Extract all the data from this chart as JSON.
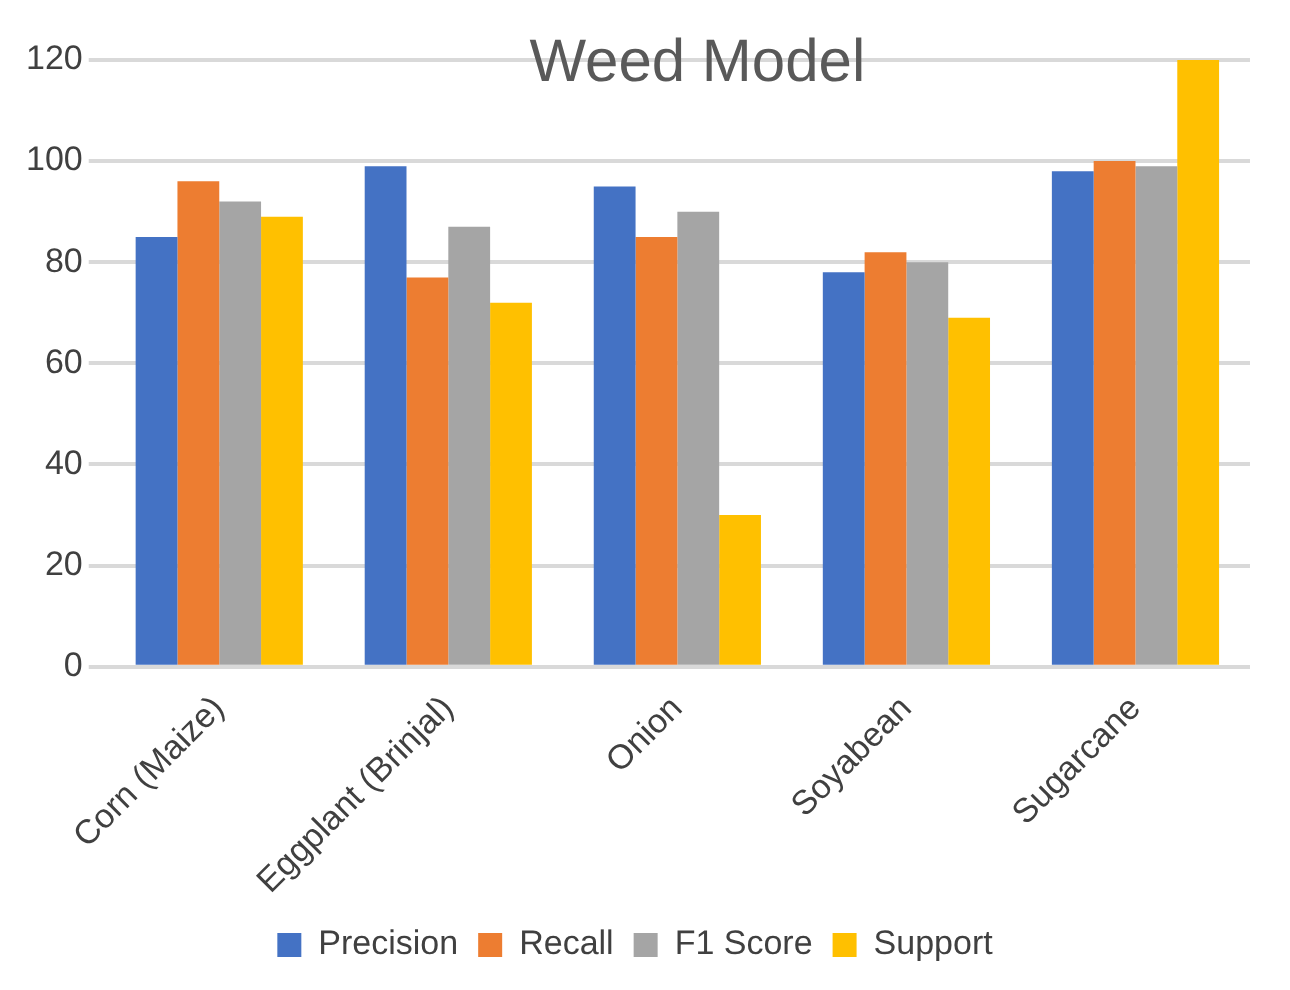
{
  "chart_data": {
    "type": "bar",
    "title": "Weed Model",
    "categories": [
      "Corn (Maize)",
      "Eggplant (Brinjal)",
      "Onion",
      "Soyabean",
      "Sugarcane"
    ],
    "series": [
      {
        "name": "Precision",
        "color": "#4472c4",
        "values": [
          85,
          99,
          95,
          78,
          98
        ]
      },
      {
        "name": "Recall",
        "color": "#ed7d31",
        "values": [
          96,
          77,
          85,
          82,
          100
        ]
      },
      {
        "name": "F1 Score",
        "color": "#a5a5a5",
        "values": [
          92,
          87,
          90,
          80,
          99
        ]
      },
      {
        "name": "Support",
        "color": "#ffc000",
        "values": [
          89,
          72,
          30,
          69,
          120
        ]
      }
    ],
    "ylim": [
      0,
      120
    ],
    "yticks": [
      0,
      20,
      40,
      60,
      80,
      100,
      120
    ],
    "grid": "y",
    "legend": "bottom"
  }
}
